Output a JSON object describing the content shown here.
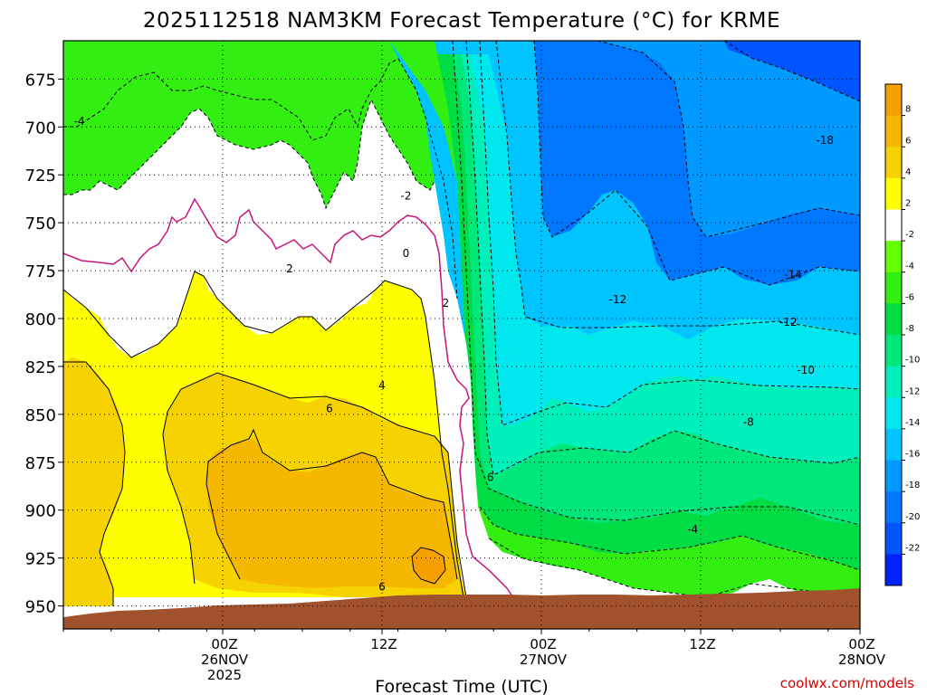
{
  "chart_data": {
    "type": "heatmap",
    "title": "2025112518 NAM3KM Forecast Temperature (°C) for KRME",
    "xlabel": "Forecast Time (UTC)",
    "ylabel": "",
    "y_axis": {
      "ticks": [
        "675",
        "700",
        "725",
        "750",
        "775",
        "800",
        "825",
        "850",
        "875",
        "900",
        "925",
        "950"
      ],
      "ylim_hpa": [
        655,
        962
      ]
    },
    "x_axis": {
      "xlim_hours": [
        -10,
        40
      ],
      "ticks": [
        {
          "hour": 0,
          "lines": [
            "00Z",
            "26NOV",
            "2025"
          ]
        },
        {
          "hour": 10,
          "lines": [
            "12Z"
          ]
        },
        {
          "hour": 20,
          "lines": [
            "00Z",
            "27NOV"
          ]
        },
        {
          "hour": 30,
          "lines": [
            "12Z"
          ]
        },
        {
          "hour": 40,
          "lines": [
            "00Z",
            "28NOV"
          ]
        }
      ]
    },
    "colorbar": {
      "levels": [
        "8",
        "6",
        "4",
        "2",
        "-2",
        "-4",
        "-6",
        "-8",
        "-10",
        "-12",
        "-14",
        "-16",
        "-18",
        "-20",
        "-22"
      ],
      "colors": [
        "#f5a000",
        "#f5b700",
        "#f5d200",
        "#ffff00",
        "#ffffff",
        "#66ff00",
        "#33ee11",
        "#00dd44",
        "#00e87a",
        "#00f0bb",
        "#00e8ee",
        "#00c4ff",
        "#0099ff",
        "#0077ff",
        "#0055ff",
        "#0022ff"
      ]
    },
    "fill_colors": {
      "warm_8": "#f5a000",
      "warm_6": "#f5b700",
      "warm_4": "#f5d200",
      "warm_2": "#ffff00",
      "near_zero": "#ffffff",
      "cool_m2": "#66ff00",
      "cool_m4": "#33ee11",
      "cool_m6": "#00dd44",
      "cool_m8": "#00e87a",
      "cool_m10": "#00f0bb",
      "cool_m12": "#00e8ee",
      "cool_m14": "#00c4ff",
      "cool_m16": "#0099ff",
      "cool_m18": "#0077ff",
      "cool_m20": "#0055ff",
      "terrain": "#a0522d",
      "freezing_line": "#c8147a"
    },
    "contour_labels": [
      {
        "text": "-4",
        "hour": -9.0,
        "hpa": 697
      },
      {
        "text": "-2",
        "hour": 11.5,
        "hpa": 736
      },
      {
        "text": "0",
        "hour": 11.5,
        "hpa": 766
      },
      {
        "text": "2",
        "hour": 4.2,
        "hpa": 774
      },
      {
        "text": "2",
        "hour": 14.0,
        "hpa": 792
      },
      {
        "text": "4",
        "hour": 10.0,
        "hpa": 835
      },
      {
        "text": "6",
        "hour": 6.7,
        "hpa": 847
      },
      {
        "text": "6",
        "hour": 16.8,
        "hpa": 883
      },
      {
        "text": "6",
        "hour": 10.0,
        "hpa": 940
      },
      {
        "text": "-12",
        "hour": 24.8,
        "hpa": 790
      },
      {
        "text": "-18",
        "hour": 37.8,
        "hpa": 707
      },
      {
        "text": "-14",
        "hour": 35.8,
        "hpa": 777
      },
      {
        "text": "-12",
        "hour": 35.5,
        "hpa": 802
      },
      {
        "text": "-10",
        "hour": 36.6,
        "hpa": 827
      },
      {
        "text": "-8",
        "hour": 33.0,
        "hpa": 854
      },
      {
        "text": "-4",
        "hour": 29.5,
        "hpa": 910
      }
    ]
  },
  "credit": "coolwx.com/models"
}
